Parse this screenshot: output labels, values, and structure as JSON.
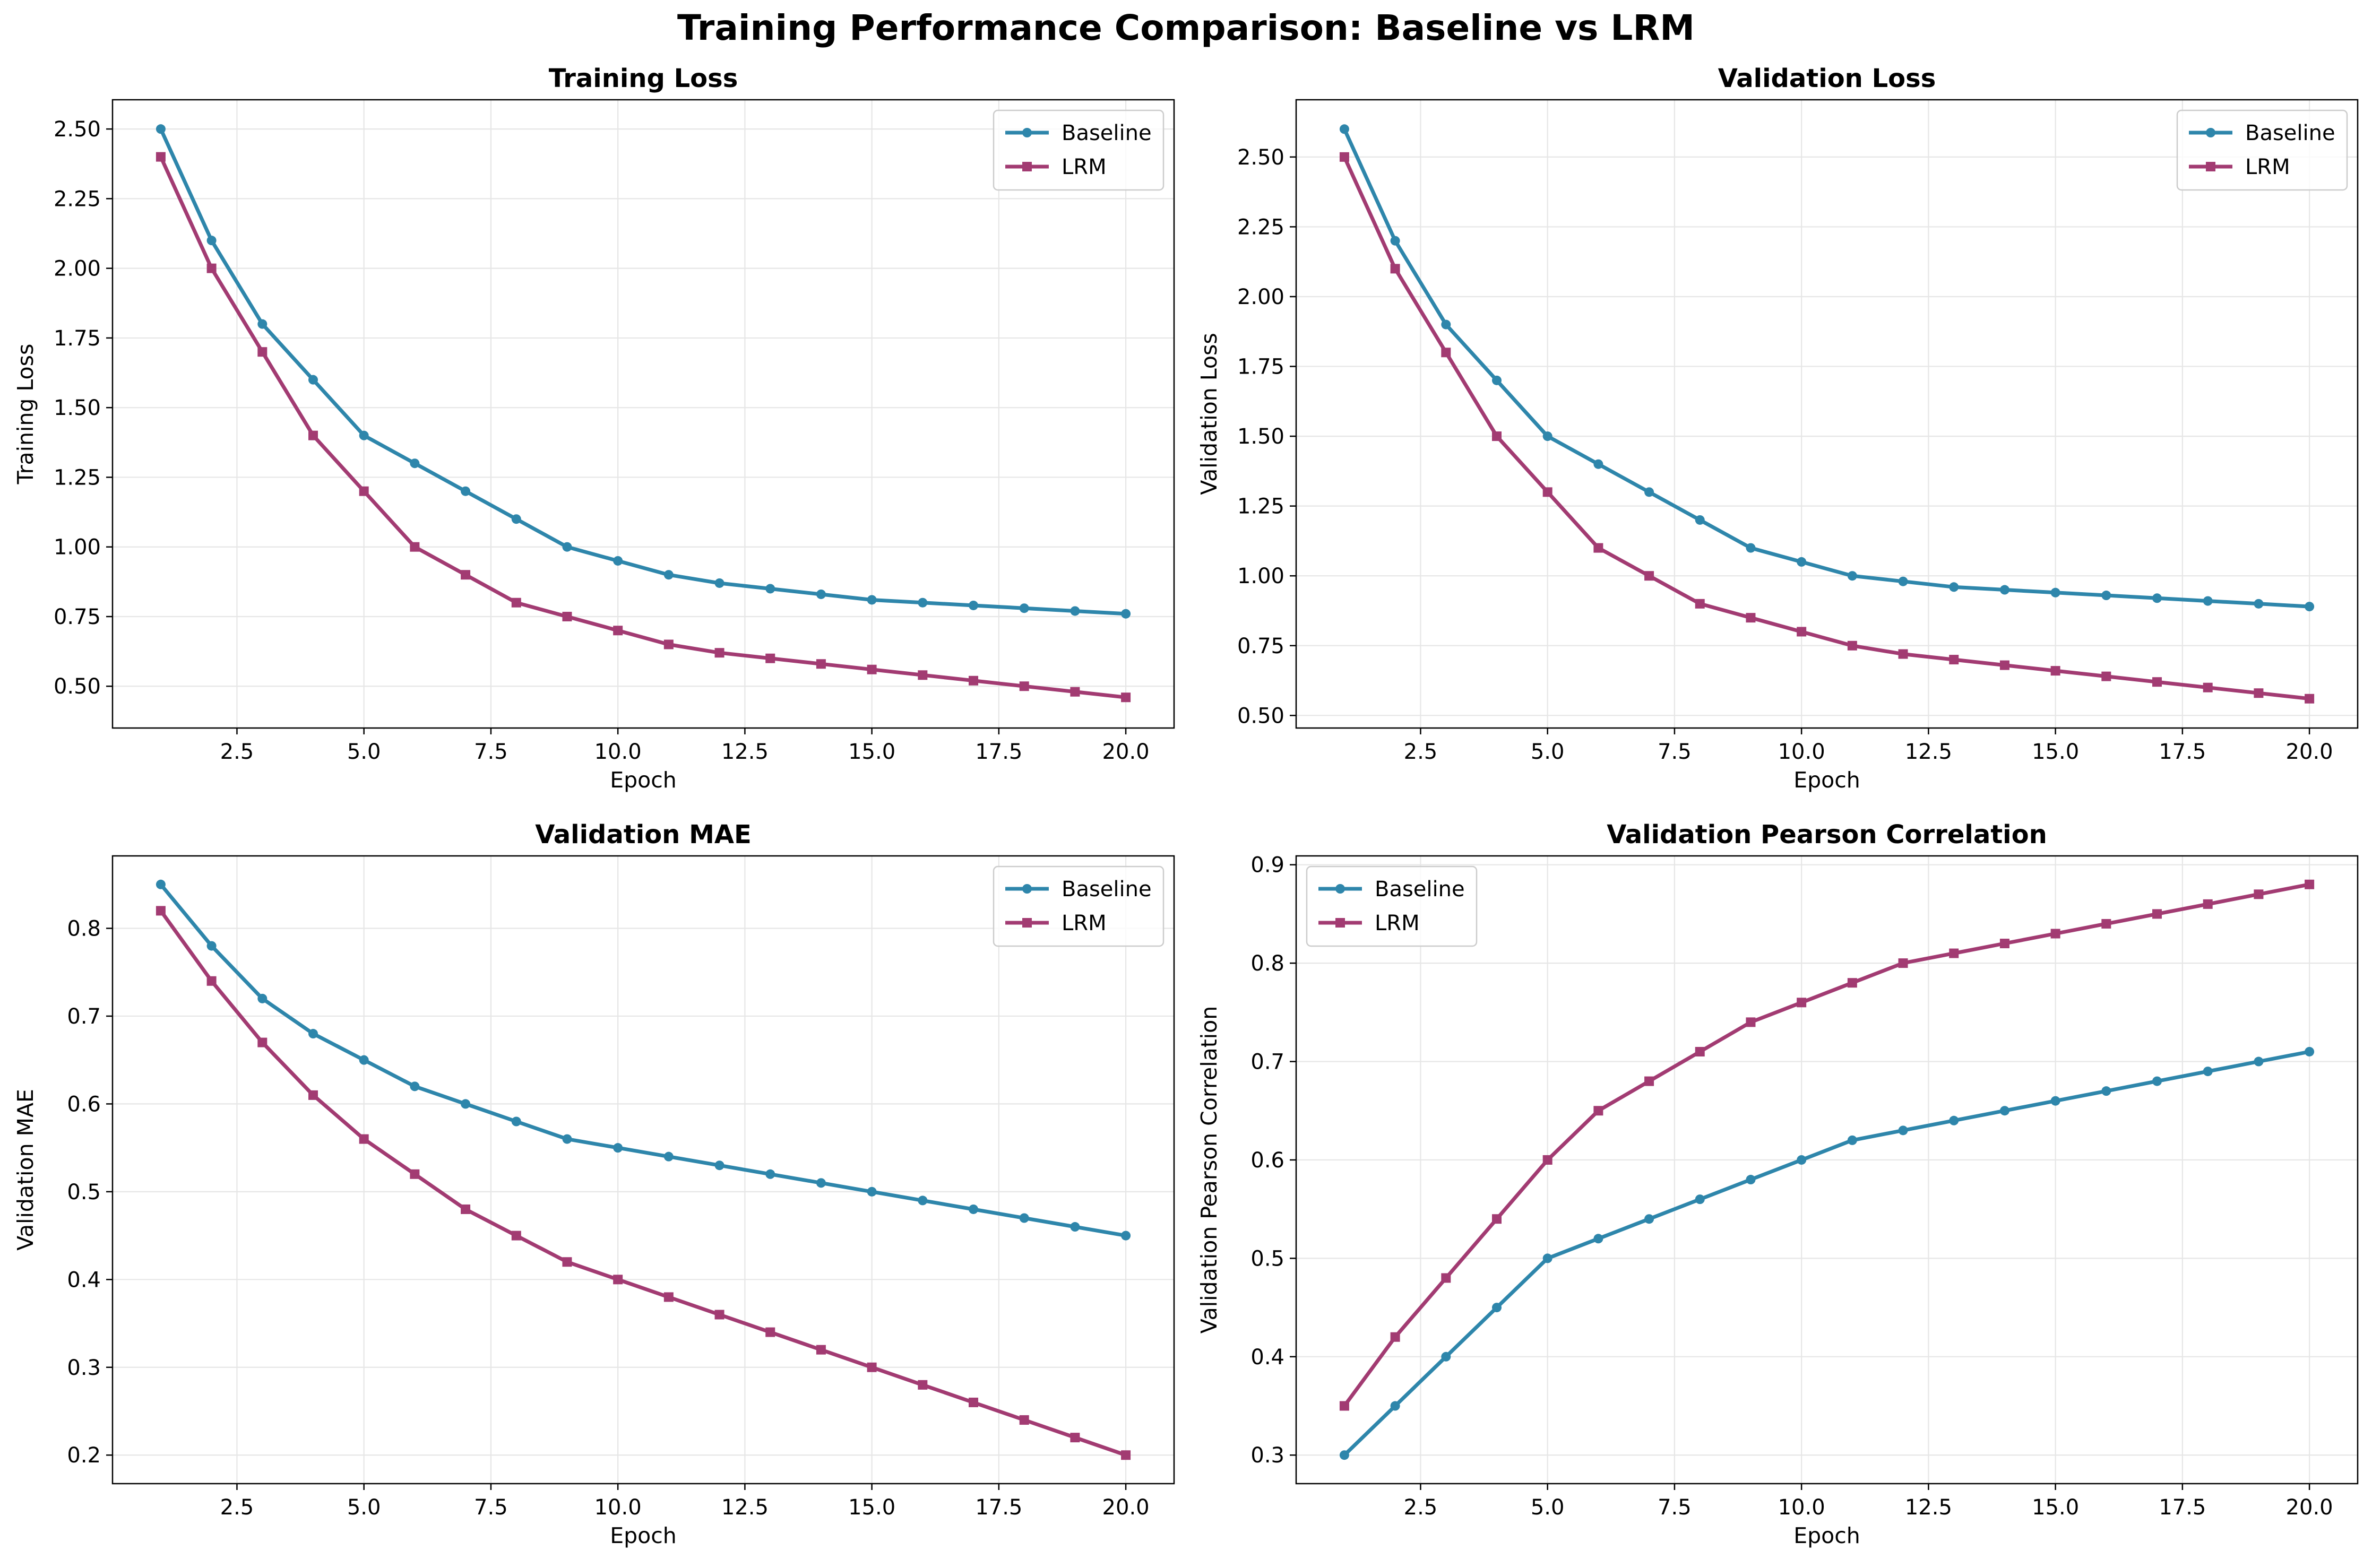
{
  "suptitle": "Training Performance Comparison: Baseline vs LRM",
  "colors": {
    "baseline": "#2e86ab",
    "lrm": "#a23b72",
    "grid": "#e6e6e6"
  },
  "chart_data": [
    {
      "type": "line",
      "title": "Training Loss",
      "xlabel": "Epoch",
      "ylabel": "Training Loss",
      "xlim": [
        0.05,
        20.95
      ],
      "ylim": [
        0.35,
        2.605
      ],
      "xticks": [
        "2.5",
        "5.0",
        "7.5",
        "10.0",
        "12.5",
        "15.0",
        "17.5",
        "20.0"
      ],
      "yticks": [
        "0.50",
        "0.75",
        "1.00",
        "1.25",
        "1.50",
        "1.75",
        "2.00",
        "2.25",
        "2.50"
      ],
      "grid": true,
      "legend": "upper right",
      "x": [
        1,
        2,
        3,
        4,
        5,
        6,
        7,
        8,
        9,
        10,
        11,
        12,
        13,
        14,
        15,
        16,
        17,
        18,
        19,
        20
      ],
      "series": [
        {
          "name": "Baseline",
          "marker": "circle",
          "values": [
            2.5,
            2.1,
            1.8,
            1.6,
            1.4,
            1.3,
            1.2,
            1.1,
            1.0,
            0.95,
            0.9,
            0.87,
            0.85,
            0.83,
            0.81,
            0.8,
            0.79,
            0.78,
            0.77,
            0.76
          ]
        },
        {
          "name": "LRM",
          "marker": "square",
          "values": [
            2.4,
            2.0,
            1.7,
            1.4,
            1.2,
            1.0,
            0.9,
            0.8,
            0.75,
            0.7,
            0.65,
            0.62,
            0.6,
            0.58,
            0.56,
            0.54,
            0.52,
            0.5,
            0.48,
            0.46
          ]
        }
      ]
    },
    {
      "type": "line",
      "title": "Validation Loss",
      "xlabel": "Epoch",
      "ylabel": "Validation Loss",
      "xlim": [
        0.05,
        20.95
      ],
      "ylim": [
        0.455,
        2.705
      ],
      "xticks": [
        "2.5",
        "5.0",
        "7.5",
        "10.0",
        "12.5",
        "15.0",
        "17.5",
        "20.0"
      ],
      "yticks": [
        "0.50",
        "0.75",
        "1.00",
        "1.25",
        "1.50",
        "1.75",
        "2.00",
        "2.25",
        "2.50"
      ],
      "grid": true,
      "legend": "upper right",
      "x": [
        1,
        2,
        3,
        4,
        5,
        6,
        7,
        8,
        9,
        10,
        11,
        12,
        13,
        14,
        15,
        16,
        17,
        18,
        19,
        20
      ],
      "series": [
        {
          "name": "Baseline",
          "marker": "circle",
          "values": [
            2.6,
            2.2,
            1.9,
            1.7,
            1.5,
            1.4,
            1.3,
            1.2,
            1.1,
            1.05,
            1.0,
            0.98,
            0.96,
            0.95,
            0.94,
            0.93,
            0.92,
            0.91,
            0.9,
            0.89
          ]
        },
        {
          "name": "LRM",
          "marker": "square",
          "values": [
            2.5,
            2.1,
            1.8,
            1.5,
            1.3,
            1.1,
            1.0,
            0.9,
            0.85,
            0.8,
            0.75,
            0.72,
            0.7,
            0.68,
            0.66,
            0.64,
            0.62,
            0.6,
            0.58,
            0.56
          ]
        }
      ]
    },
    {
      "type": "line",
      "title": "Validation MAE",
      "xlabel": "Epoch",
      "ylabel": "Validation MAE",
      "xlim": [
        0.05,
        20.95
      ],
      "ylim": [
        0.1675,
        0.8825
      ],
      "xticks": [
        "2.5",
        "5.0",
        "7.5",
        "10.0",
        "12.5",
        "15.0",
        "17.5",
        "20.0"
      ],
      "yticks": [
        "0.2",
        "0.3",
        "0.4",
        "0.5",
        "0.6",
        "0.7",
        "0.8"
      ],
      "grid": true,
      "legend": "upper right",
      "x": [
        1,
        2,
        3,
        4,
        5,
        6,
        7,
        8,
        9,
        10,
        11,
        12,
        13,
        14,
        15,
        16,
        17,
        18,
        19,
        20
      ],
      "series": [
        {
          "name": "Baseline",
          "marker": "circle",
          "values": [
            0.85,
            0.78,
            0.72,
            0.68,
            0.65,
            0.62,
            0.6,
            0.58,
            0.56,
            0.55,
            0.54,
            0.53,
            0.52,
            0.51,
            0.5,
            0.49,
            0.48,
            0.47,
            0.46,
            0.45
          ]
        },
        {
          "name": "LRM",
          "marker": "square",
          "values": [
            0.82,
            0.74,
            0.67,
            0.61,
            0.56,
            0.52,
            0.48,
            0.45,
            0.42,
            0.4,
            0.38,
            0.36,
            0.34,
            0.32,
            0.3,
            0.28,
            0.26,
            0.24,
            0.22,
            0.2
          ]
        }
      ]
    },
    {
      "type": "line",
      "title": "Validation Pearson Correlation",
      "xlabel": "Epoch",
      "ylabel": "Validation Pearson Correlation",
      "xlim": [
        0.05,
        20.95
      ],
      "ylim": [
        0.271,
        0.909
      ],
      "xticks": [
        "2.5",
        "5.0",
        "7.5",
        "10.0",
        "12.5",
        "15.0",
        "17.5",
        "20.0"
      ],
      "yticks": [
        "0.3",
        "0.4",
        "0.5",
        "0.6",
        "0.7",
        "0.8",
        "0.9"
      ],
      "grid": true,
      "legend": "upper left",
      "x": [
        1,
        2,
        3,
        4,
        5,
        6,
        7,
        8,
        9,
        10,
        11,
        12,
        13,
        14,
        15,
        16,
        17,
        18,
        19,
        20
      ],
      "series": [
        {
          "name": "Baseline",
          "marker": "circle",
          "values": [
            0.3,
            0.35,
            0.4,
            0.45,
            0.5,
            0.52,
            0.54,
            0.56,
            0.58,
            0.6,
            0.62,
            0.63,
            0.64,
            0.65,
            0.66,
            0.67,
            0.68,
            0.69,
            0.7,
            0.71
          ]
        },
        {
          "name": "LRM",
          "marker": "square",
          "values": [
            0.35,
            0.42,
            0.48,
            0.54,
            0.6,
            0.65,
            0.68,
            0.71,
            0.74,
            0.76,
            0.78,
            0.8,
            0.81,
            0.82,
            0.83,
            0.84,
            0.85,
            0.86,
            0.87,
            0.88
          ]
        }
      ]
    }
  ]
}
